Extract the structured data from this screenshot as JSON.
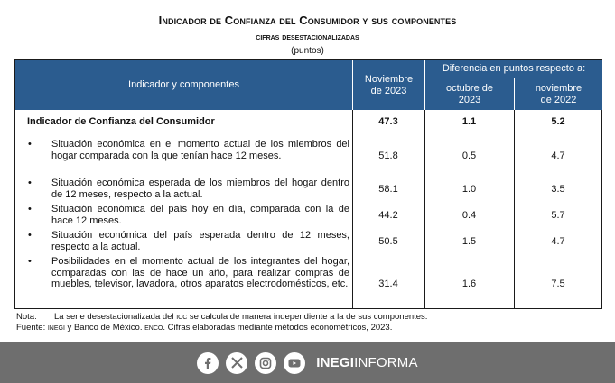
{
  "header": {
    "title": "Indicador de Confianza del Consumidor y sus componentes",
    "subtitle": "cifras desestacionalizadas",
    "units": "(puntos)"
  },
  "table": {
    "col_indicator": "Indicador y componentes",
    "col_nov2023": "Noviembre de 2023",
    "col_diff": "Diferencia en puntos respecto a:",
    "col_oct2023": "octubre de 2023",
    "col_nov2022": "noviembre de 2022",
    "main": {
      "label": "Indicador de Confianza del Consumidor",
      "v1": "47.3",
      "v2": "1.1",
      "v3": "5.2"
    },
    "rows": [
      {
        "label": "Situación económica en el momento actual de los miembros del hogar comparada con la que tenían hace 12 meses.",
        "v1": "51.8",
        "v2": "0.5",
        "v3": "4.7"
      },
      {
        "label": "Situación económica esperada de los miembros del hogar dentro de 12 meses, respecto a la actual.",
        "v1": "58.1",
        "v2": "1.0",
        "v3": "3.5"
      },
      {
        "label": "Situación económica del país hoy en día, comparada con la de hace 12 meses.",
        "v1": "44.2",
        "v2": "0.4",
        "v3": "5.7"
      },
      {
        "label": "Situación económica del país esperada dentro de 12 meses, respecto a la actual.",
        "v1": "50.5",
        "v2": "1.5",
        "v3": "4.7"
      },
      {
        "label": "Posibilidades en el momento actual de los integrantes del hogar, comparadas con las de hace un año, para realizar compras de muebles, televisor, lavadora, otros aparatos electrodomésticos, etc.",
        "v1": "31.4",
        "v2": "1.6",
        "v3": "7.5"
      }
    ],
    "bullet": "•"
  },
  "notes": {
    "note_prefix": "Nota:",
    "note_text_a": "La serie desestacionalizada del ",
    "note_icc": "icc",
    "note_text_b": " se calcula de manera independiente a la de sus componentes.",
    "source_prefix": "Fuente: ",
    "source_inegi": "inegi",
    "source_text_a": " y Banco de México. ",
    "source_enco": "enco",
    "source_text_b": ". Cifras elaboradas mediante métodos econométricos, 2023."
  },
  "footer": {
    "icons": [
      "facebook-icon",
      "x-icon",
      "instagram-icon",
      "youtube-icon"
    ],
    "brand_bold": "INEGI",
    "brand_light": "INFORMA"
  }
}
